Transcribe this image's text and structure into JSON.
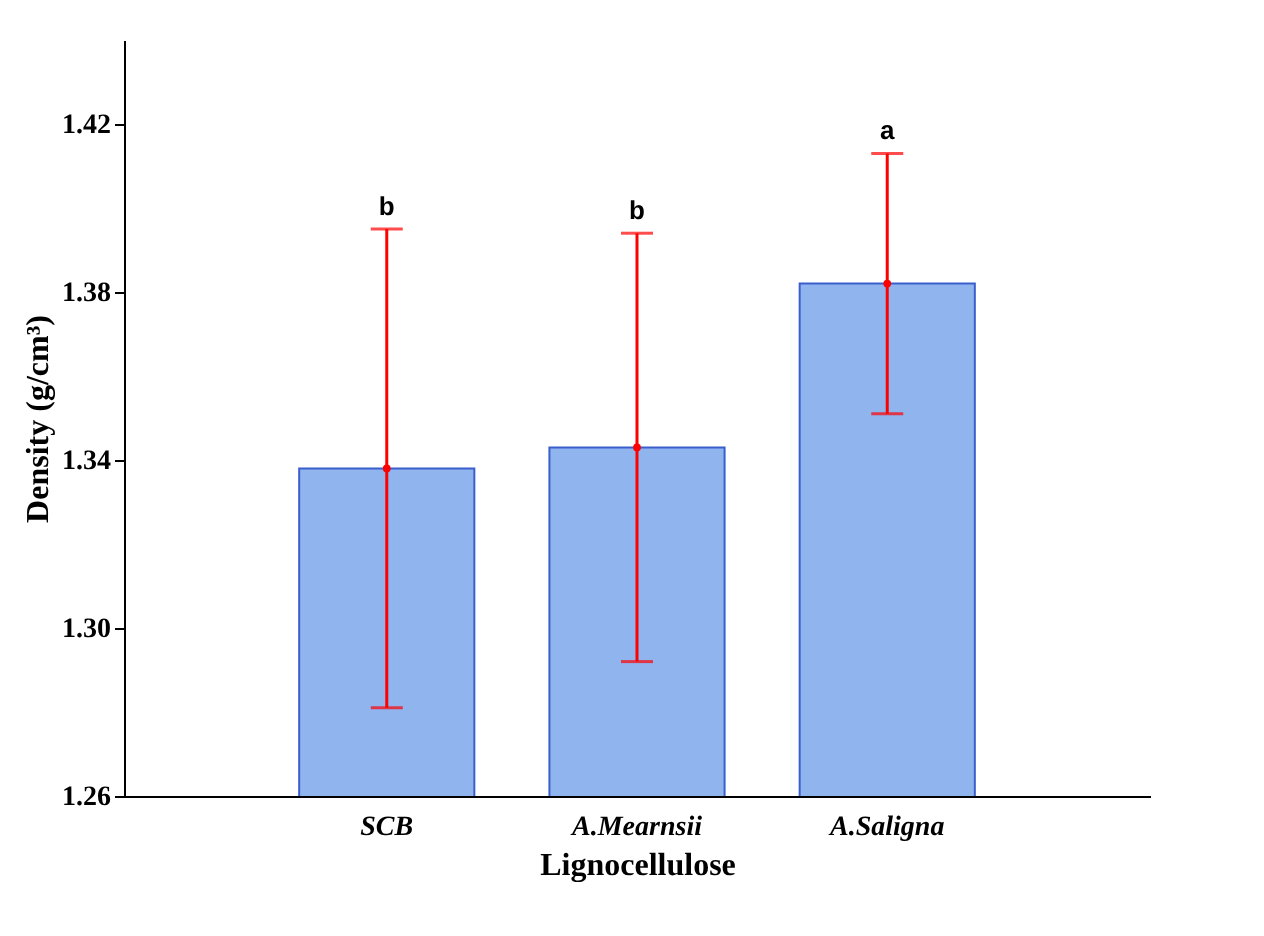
{
  "chart_data": {
    "type": "bar",
    "xlabel": "Lignocellulose",
    "ylabel": "Density (g/cm³)",
    "categories": [
      "SCB",
      "A.Mearnsii",
      "A.Saligna"
    ],
    "series": [
      {
        "color": "#8fb4ee",
        "values": [
          1.338,
          1.343,
          1.382
        ],
        "errors": [
          [
            1.281,
            1.395
          ],
          [
            1.292,
            1.394
          ],
          [
            1.351,
            1.413
          ]
        ]
      },
      {
        "type": "scatter",
        "color": "#ff0000",
        "x": [
          "SCB",
          "A.Mearnsii",
          "A.Saligna"
        ],
        "values": [
          1.338,
          1.343,
          1.382
        ]
      }
    ],
    "ylim": [
      1.26,
      1.44
    ],
    "yticks": [
      {
        "value": 1.26,
        "label": "1.26"
      },
      {
        "value": 1.3,
        "label": "1.30"
      },
      {
        "value": 1.34,
        "label": "1.34"
      },
      {
        "value": 1.38,
        "label": "1.38"
      },
      {
        "value": 1.42,
        "label": "1.42"
      }
    ],
    "grid": false,
    "annotations": [
      {
        "text": "b",
        "x": "SCB",
        "y": 1.395
      },
      {
        "text": "b",
        "x": "A.Mearnsii",
        "y": 1.394
      },
      {
        "text": "a",
        "x": "A.Saligna",
        "y": 1.413
      }
    ]
  }
}
